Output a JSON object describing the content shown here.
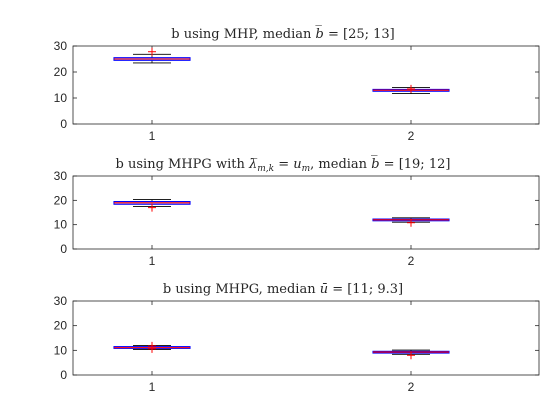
{
  "chart_data": [
    {
      "type": "boxplot",
      "title": "b using MHP, median b̅ = [25; 13]",
      "categories": [
        "1",
        "2"
      ],
      "ylim": [
        0,
        30
      ],
      "yticks": [
        "0",
        "10",
        "20",
        "30"
      ],
      "boxes": [
        {
          "category": "1",
          "whisker_low": 23.5,
          "q1": 24.5,
          "median": 25.0,
          "q3": 25.5,
          "whisker_high": 26.8,
          "outliers": [
            27.8
          ]
        },
        {
          "category": "2",
          "whisker_low": 11.7,
          "q1": 12.6,
          "median": 13.0,
          "q3": 13.3,
          "whisker_high": 14.0,
          "outliers": [
            13.5
          ]
        }
      ]
    },
    {
      "type": "boxplot",
      "title": "b using MHPG with λ̅m,k = um, median b̅ = [19; 12]",
      "categories": [
        "1",
        "2"
      ],
      "ylim": [
        0,
        30
      ],
      "yticks": [
        "0",
        "10",
        "20",
        "30"
      ],
      "boxes": [
        {
          "category": "1",
          "whisker_low": 17.5,
          "q1": 18.4,
          "median": 19.0,
          "q3": 19.5,
          "whisker_high": 20.3,
          "outliers": [
            17.0
          ]
        },
        {
          "category": "2",
          "whisker_low": 11.0,
          "q1": 11.6,
          "median": 12.0,
          "q3": 12.3,
          "whisker_high": 12.8,
          "outliers": [
            10.8
          ]
        }
      ]
    },
    {
      "type": "boxplot",
      "title": "b using MHPG, median ū = [11; 9.3]",
      "categories": [
        "1",
        "2"
      ],
      "ylim": [
        0,
        30
      ],
      "yticks": [
        "0",
        "10",
        "20",
        "30"
      ],
      "boxes": [
        {
          "category": "1",
          "whisker_low": 10.3,
          "q1": 10.8,
          "median": 11.1,
          "q3": 11.5,
          "whisker_high": 12.0,
          "outliers": [
            11.8,
            10.6
          ]
        },
        {
          "category": "2",
          "whisker_low": 8.4,
          "q1": 8.9,
          "median": 9.3,
          "q3": 9.6,
          "whisker_high": 10.1,
          "outliers": [
            8.0
          ]
        }
      ]
    }
  ],
  "colors": {
    "axis": "#262626",
    "box": "#0000ff",
    "median": "#ff0000",
    "whisker": "#000000",
    "outlier": "#ff0000"
  }
}
